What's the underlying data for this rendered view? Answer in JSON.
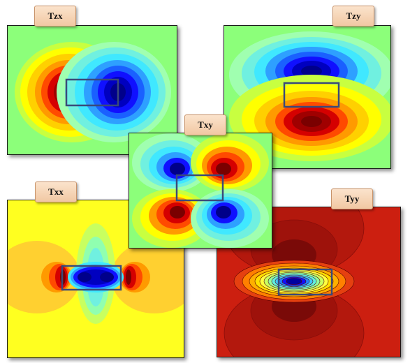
{
  "panels": [
    {
      "id": "tzx",
      "label": "Tzx"
    },
    {
      "id": "tzy",
      "label": "Tzy"
    },
    {
      "id": "txy",
      "label": "Txy"
    },
    {
      "id": "txx",
      "label": "Txx"
    },
    {
      "id": "tyy",
      "label": "Tyy"
    }
  ],
  "colors": {
    "dark_red": "#7a0000",
    "red": "#d50000",
    "orange_red": "#ff4a00",
    "orange": "#ff9a00",
    "yellow": "#ffff00",
    "yellow_green": "#c8ff40",
    "green": "#80ff80",
    "cyan": "#40e8ff",
    "light_blue": "#2ea0ff",
    "blue": "#1010ff",
    "dark_blue": "#00008a",
    "tyy_background": "#cc1f10",
    "tyy_dark": "#8a0e0a",
    "box_outline": "#3a4a7a"
  }
}
